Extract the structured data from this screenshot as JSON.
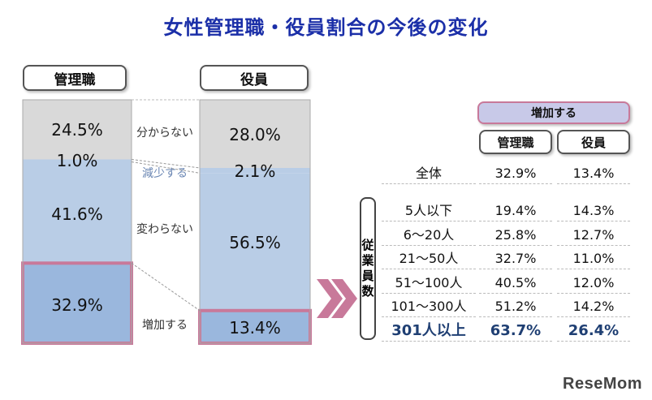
{
  "title": "女性管理職・役員割合の今後の変化",
  "chart_data": [
    {
      "type": "bar",
      "stacked": true,
      "categories": [
        "管理職",
        "役員"
      ],
      "series": [
        {
          "name": "分からない",
          "values": [
            24.5,
            28.0
          ]
        },
        {
          "name": "減少する",
          "values": [
            1.0,
            2.1
          ]
        },
        {
          "name": "変わらない",
          "values": [
            41.6,
            56.5
          ]
        },
        {
          "name": "増加する",
          "values": [
            32.9,
            13.4
          ]
        }
      ],
      "labels": {
        "mgmt": [
          "24.5%",
          "1.0%",
          "41.6%",
          "32.9%"
        ],
        "exec": [
          "28.0%",
          "2.1%",
          "56.5%",
          "13.4%"
        ]
      },
      "colors": {
        "unknown": "#d9d9d9",
        "decrease": "#b9cde6",
        "same": "#b9cde6",
        "increase_mgmt": "#9ab7dd",
        "increase_exec": "#9ab7dd",
        "highlight": "#c8799a"
      }
    },
    {
      "type": "table",
      "group_header": "増加する",
      "columns": [
        "管理職",
        "役員"
      ],
      "side_label": "従業員数",
      "overall": {
        "label": "全体",
        "values": [
          "32.9%",
          "13.4%"
        ]
      },
      "rows": [
        {
          "label": "5人以下",
          "values": [
            "19.4%",
            "14.3%"
          ]
        },
        {
          "label": "6～20人",
          "values": [
            "25.8%",
            "12.7%"
          ]
        },
        {
          "label": "21～50人",
          "values": [
            "32.7%",
            "11.0%"
          ]
        },
        {
          "label": "51～100人",
          "values": [
            "40.5%",
            "12.0%"
          ]
        },
        {
          "label": "101～300人",
          "values": [
            "51.2%",
            "14.2%"
          ]
        },
        {
          "label": "301人以上",
          "values": [
            "63.7%",
            "26.4%"
          ]
        }
      ]
    }
  ],
  "logo": "ReseMom"
}
